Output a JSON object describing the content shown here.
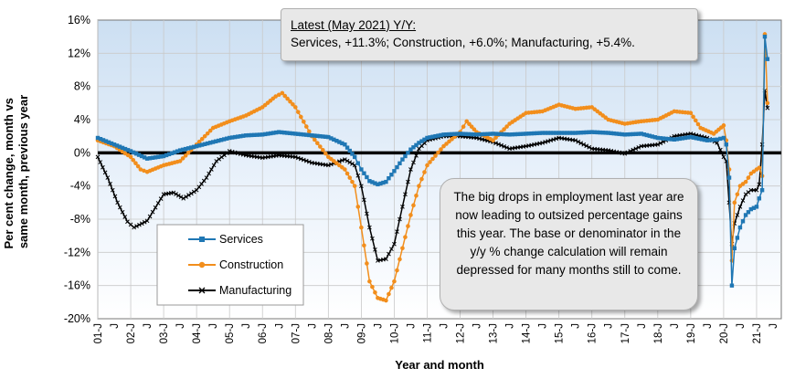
{
  "chart_data": {
    "type": "line",
    "xlabel": "Year and month",
    "ylabel": "Per cent change, month vs same month, previous year",
    "ylim": [
      -20,
      16
    ],
    "yticks": [
      "16%",
      "12%",
      "8%",
      "4%",
      "0%",
      "-4%",
      "-8%",
      "-12%",
      "-16%",
      "-20%"
    ],
    "xlim": [
      2001.0,
      2021.75
    ],
    "categories": [
      "01-J",
      "J",
      "02-J",
      "J",
      "03-J",
      "J",
      "04-J",
      "J",
      "05-J",
      "J",
      "06-J",
      "J",
      "07-J",
      "J",
      "08-J",
      "J",
      "09-J",
      "J",
      "10-J",
      "J",
      "11-J",
      "J",
      "12-J",
      "J",
      "13-J",
      "J",
      "14-J",
      "J",
      "15-J",
      "J",
      "16-J",
      "J",
      "17-J",
      "J",
      "18-J",
      "J",
      "19-J",
      "J",
      "20-J",
      "J",
      "21-J",
      "J"
    ],
    "legend_position": "bottom-left",
    "series": [
      {
        "name": "Services",
        "color": "#1f77b4",
        "marker": "square",
        "points": [
          [
            2001.0,
            1.8
          ],
          [
            2001.5,
            1.0
          ],
          [
            2002.0,
            0.2
          ],
          [
            2002.5,
            -0.7
          ],
          [
            2003.0,
            -0.4
          ],
          [
            2003.5,
            0.3
          ],
          [
            2004.0,
            0.8
          ],
          [
            2004.5,
            1.3
          ],
          [
            2005.0,
            1.8
          ],
          [
            2005.5,
            2.1
          ],
          [
            2006.0,
            2.2
          ],
          [
            2006.5,
            2.5
          ],
          [
            2007.0,
            2.3
          ],
          [
            2007.5,
            2.1
          ],
          [
            2008.0,
            1.9
          ],
          [
            2008.5,
            1.0
          ],
          [
            2008.8,
            -0.5
          ],
          [
            2009.0,
            -2.0
          ],
          [
            2009.25,
            -3.4
          ],
          [
            2009.5,
            -3.8
          ],
          [
            2009.75,
            -3.5
          ],
          [
            2010.0,
            -2.2
          ],
          [
            2010.25,
            -0.8
          ],
          [
            2010.5,
            0.4
          ],
          [
            2010.75,
            1.2
          ],
          [
            2011.0,
            1.8
          ],
          [
            2011.5,
            2.2
          ],
          [
            2012.0,
            2.3
          ],
          [
            2012.5,
            2.2
          ],
          [
            2013.0,
            2.3
          ],
          [
            2013.5,
            2.2
          ],
          [
            2014.0,
            2.3
          ],
          [
            2014.5,
            2.4
          ],
          [
            2015.0,
            2.4
          ],
          [
            2015.5,
            2.4
          ],
          [
            2016.0,
            2.5
          ],
          [
            2016.5,
            2.4
          ],
          [
            2017.0,
            2.2
          ],
          [
            2017.5,
            2.3
          ],
          [
            2018.0,
            1.8
          ],
          [
            2018.5,
            1.6
          ],
          [
            2019.0,
            1.9
          ],
          [
            2019.5,
            1.5
          ],
          [
            2019.8,
            1.6
          ],
          [
            2020.0,
            1.8
          ],
          [
            2020.08,
            1.0
          ],
          [
            2020.17,
            -3.0
          ],
          [
            2020.25,
            -16.0
          ],
          [
            2020.33,
            -11.5
          ],
          [
            2020.5,
            -9.0
          ],
          [
            2020.67,
            -7.5
          ],
          [
            2020.83,
            -6.8
          ],
          [
            2021.0,
            -6.5
          ],
          [
            2021.08,
            -5.5
          ],
          [
            2021.17,
            -4.5
          ],
          [
            2021.25,
            14.0
          ],
          [
            2021.33,
            11.3
          ]
        ]
      },
      {
        "name": "Construction",
        "color": "#f28e1c",
        "marker": "circle",
        "points": [
          [
            2001.0,
            1.5
          ],
          [
            2001.5,
            0.8
          ],
          [
            2002.0,
            -0.5
          ],
          [
            2002.3,
            -2.0
          ],
          [
            2002.5,
            -2.3
          ],
          [
            2003.0,
            -1.5
          ],
          [
            2003.5,
            -1.0
          ],
          [
            2004.0,
            1.0
          ],
          [
            2004.5,
            3.0
          ],
          [
            2005.0,
            3.8
          ],
          [
            2005.5,
            4.5
          ],
          [
            2006.0,
            5.5
          ],
          [
            2006.4,
            6.8
          ],
          [
            2006.6,
            7.2
          ],
          [
            2007.0,
            5.5
          ],
          [
            2007.5,
            2.0
          ],
          [
            2008.0,
            -0.5
          ],
          [
            2008.5,
            -2.0
          ],
          [
            2008.8,
            -4.0
          ],
          [
            2009.0,
            -9.0
          ],
          [
            2009.25,
            -15.5
          ],
          [
            2009.5,
            -17.5
          ],
          [
            2009.75,
            -17.8
          ],
          [
            2010.0,
            -15.5
          ],
          [
            2010.25,
            -11.5
          ],
          [
            2010.5,
            -7.5
          ],
          [
            2010.75,
            -4.0
          ],
          [
            2011.0,
            -1.5
          ],
          [
            2011.5,
            0.8
          ],
          [
            2012.0,
            2.5
          ],
          [
            2012.2,
            3.8
          ],
          [
            2012.5,
            2.5
          ],
          [
            2013.0,
            1.5
          ],
          [
            2013.5,
            3.5
          ],
          [
            2014.0,
            4.8
          ],
          [
            2014.5,
            5.0
          ],
          [
            2015.0,
            5.8
          ],
          [
            2015.5,
            5.3
          ],
          [
            2016.0,
            5.5
          ],
          [
            2016.5,
            4.0
          ],
          [
            2017.0,
            3.5
          ],
          [
            2017.5,
            3.8
          ],
          [
            2018.0,
            4.0
          ],
          [
            2018.5,
            5.0
          ],
          [
            2019.0,
            4.8
          ],
          [
            2019.3,
            3.0
          ],
          [
            2019.7,
            2.3
          ],
          [
            2020.0,
            3.3
          ],
          [
            2020.08,
            1.5
          ],
          [
            2020.17,
            -2.0
          ],
          [
            2020.25,
            -13.0
          ],
          [
            2020.33,
            -6.0
          ],
          [
            2020.5,
            -4.0
          ],
          [
            2020.67,
            -3.5
          ],
          [
            2020.83,
            -2.5
          ],
          [
            2021.0,
            -2.0
          ],
          [
            2021.08,
            -1.8
          ],
          [
            2021.17,
            -2.8
          ],
          [
            2021.25,
            14.3
          ],
          [
            2021.33,
            6.0
          ]
        ]
      },
      {
        "name": "Manufacturing",
        "color": "#000000",
        "marker": "x",
        "points": [
          [
            2001.0,
            -0.5
          ],
          [
            2001.3,
            -3.0
          ],
          [
            2001.6,
            -6.0
          ],
          [
            2001.9,
            -8.3
          ],
          [
            2002.1,
            -9.0
          ],
          [
            2002.5,
            -8.2
          ],
          [
            2003.0,
            -5.0
          ],
          [
            2003.3,
            -4.8
          ],
          [
            2003.6,
            -5.5
          ],
          [
            2004.0,
            -4.5
          ],
          [
            2004.3,
            -3.0
          ],
          [
            2004.6,
            -1.0
          ],
          [
            2005.0,
            0.2
          ],
          [
            2005.5,
            -0.3
          ],
          [
            2006.0,
            -0.6
          ],
          [
            2006.5,
            -0.3
          ],
          [
            2007.0,
            -0.5
          ],
          [
            2007.5,
            -1.2
          ],
          [
            2008.0,
            -1.5
          ],
          [
            2008.5,
            -0.8
          ],
          [
            2008.8,
            -1.5
          ],
          [
            2009.0,
            -4.0
          ],
          [
            2009.25,
            -9.0
          ],
          [
            2009.5,
            -13.0
          ],
          [
            2009.75,
            -12.8
          ],
          [
            2010.0,
            -11.0
          ],
          [
            2010.25,
            -6.5
          ],
          [
            2010.5,
            -2.0
          ],
          [
            2010.75,
            0.5
          ],
          [
            2011.0,
            1.5
          ],
          [
            2011.5,
            2.0
          ],
          [
            2012.0,
            2.0
          ],
          [
            2012.5,
            1.8
          ],
          [
            2013.0,
            1.3
          ],
          [
            2013.5,
            0.5
          ],
          [
            2014.0,
            0.8
          ],
          [
            2014.5,
            1.2
          ],
          [
            2015.0,
            1.8
          ],
          [
            2015.5,
            1.5
          ],
          [
            2016.0,
            0.5
          ],
          [
            2016.5,
            0.3
          ],
          [
            2017.0,
            -0.1
          ],
          [
            2017.5,
            0.8
          ],
          [
            2018.0,
            1.0
          ],
          [
            2018.5,
            2.0
          ],
          [
            2019.0,
            2.3
          ],
          [
            2019.5,
            1.8
          ],
          [
            2019.8,
            1.2
          ],
          [
            2020.0,
            -0.5
          ],
          [
            2020.08,
            -1.0
          ],
          [
            2020.25,
            -11.0
          ],
          [
            2020.33,
            -8.5
          ],
          [
            2020.5,
            -6.5
          ],
          [
            2020.67,
            -5.0
          ],
          [
            2020.83,
            -4.5
          ],
          [
            2021.0,
            -4.5
          ],
          [
            2021.08,
            -3.8
          ],
          [
            2021.17,
            1.0
          ],
          [
            2021.25,
            7.5
          ],
          [
            2021.33,
            5.4
          ]
        ]
      }
    ],
    "annotations": {
      "latest_title": "Latest (May 2021) Y/Y:",
      "latest_text": "Services, +11.3%; Construction, +6.0%; Manufacturing, +5.4%.",
      "callout_text": "The big drops in employment last year are now leading to outsized percentage gains this year. The base or denominator in the y/y % change calculation will remain  depressed for many months still to come."
    }
  }
}
